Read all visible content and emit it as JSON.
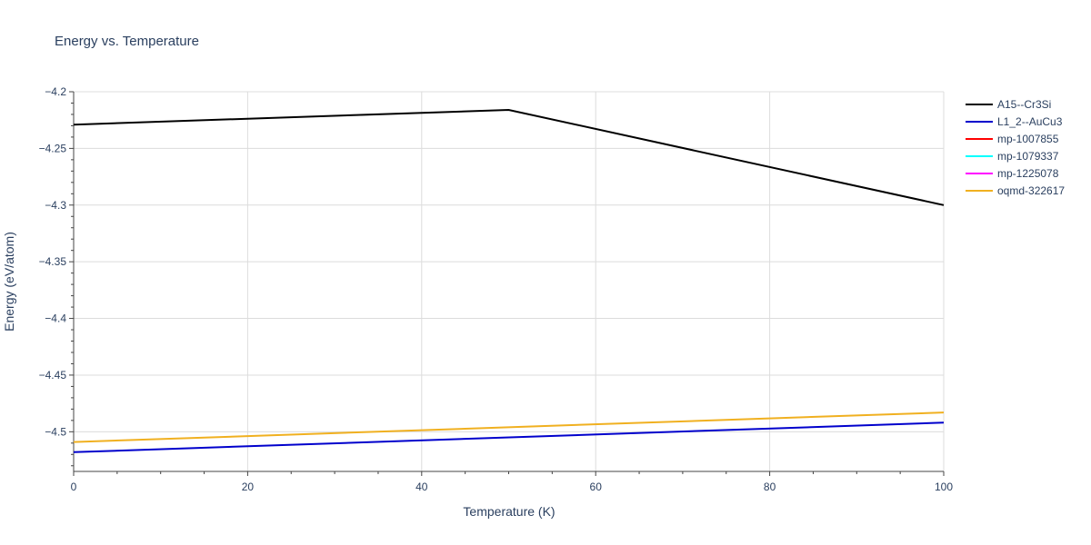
{
  "chart_data": {
    "type": "line",
    "title": "Energy vs. Temperature",
    "xlabel": "Temperature (K)",
    "ylabel": "Energy (eV/atom)",
    "xlim": [
      0,
      100
    ],
    "ylim": [
      -4.535,
      -4.2
    ],
    "xticks": [
      0,
      20,
      40,
      60,
      80,
      100
    ],
    "yticks": [
      -4.2,
      -4.25,
      -4.3,
      -4.35,
      -4.4,
      -4.45,
      -4.5
    ],
    "ytick_labels": [
      "−4.2",
      "−4.25",
      "−4.3",
      "−4.35",
      "−4.4",
      "−4.45",
      "−4.5"
    ],
    "grid": true,
    "legend_position": "right",
    "series": [
      {
        "name": "A15--Cr3Si",
        "color": "#000000",
        "x": [
          0,
          50,
          100
        ],
        "y": [
          -4.229,
          -4.216,
          -4.3
        ]
      },
      {
        "name": "L1_2--AuCu3",
        "color": "#0000cc",
        "x": [
          0,
          100
        ],
        "y": [
          -4.518,
          -4.492
        ]
      },
      {
        "name": "mp-1007855",
        "color": "#ff0000",
        "x": [],
        "y": []
      },
      {
        "name": "mp-1079337",
        "color": "#00ffff",
        "x": [],
        "y": []
      },
      {
        "name": "mp-1225078",
        "color": "#ff00ff",
        "x": [],
        "y": []
      },
      {
        "name": "oqmd-322617",
        "color": "#f0b020",
        "x": [
          0,
          100
        ],
        "y": [
          -4.509,
          -4.483
        ]
      }
    ]
  }
}
